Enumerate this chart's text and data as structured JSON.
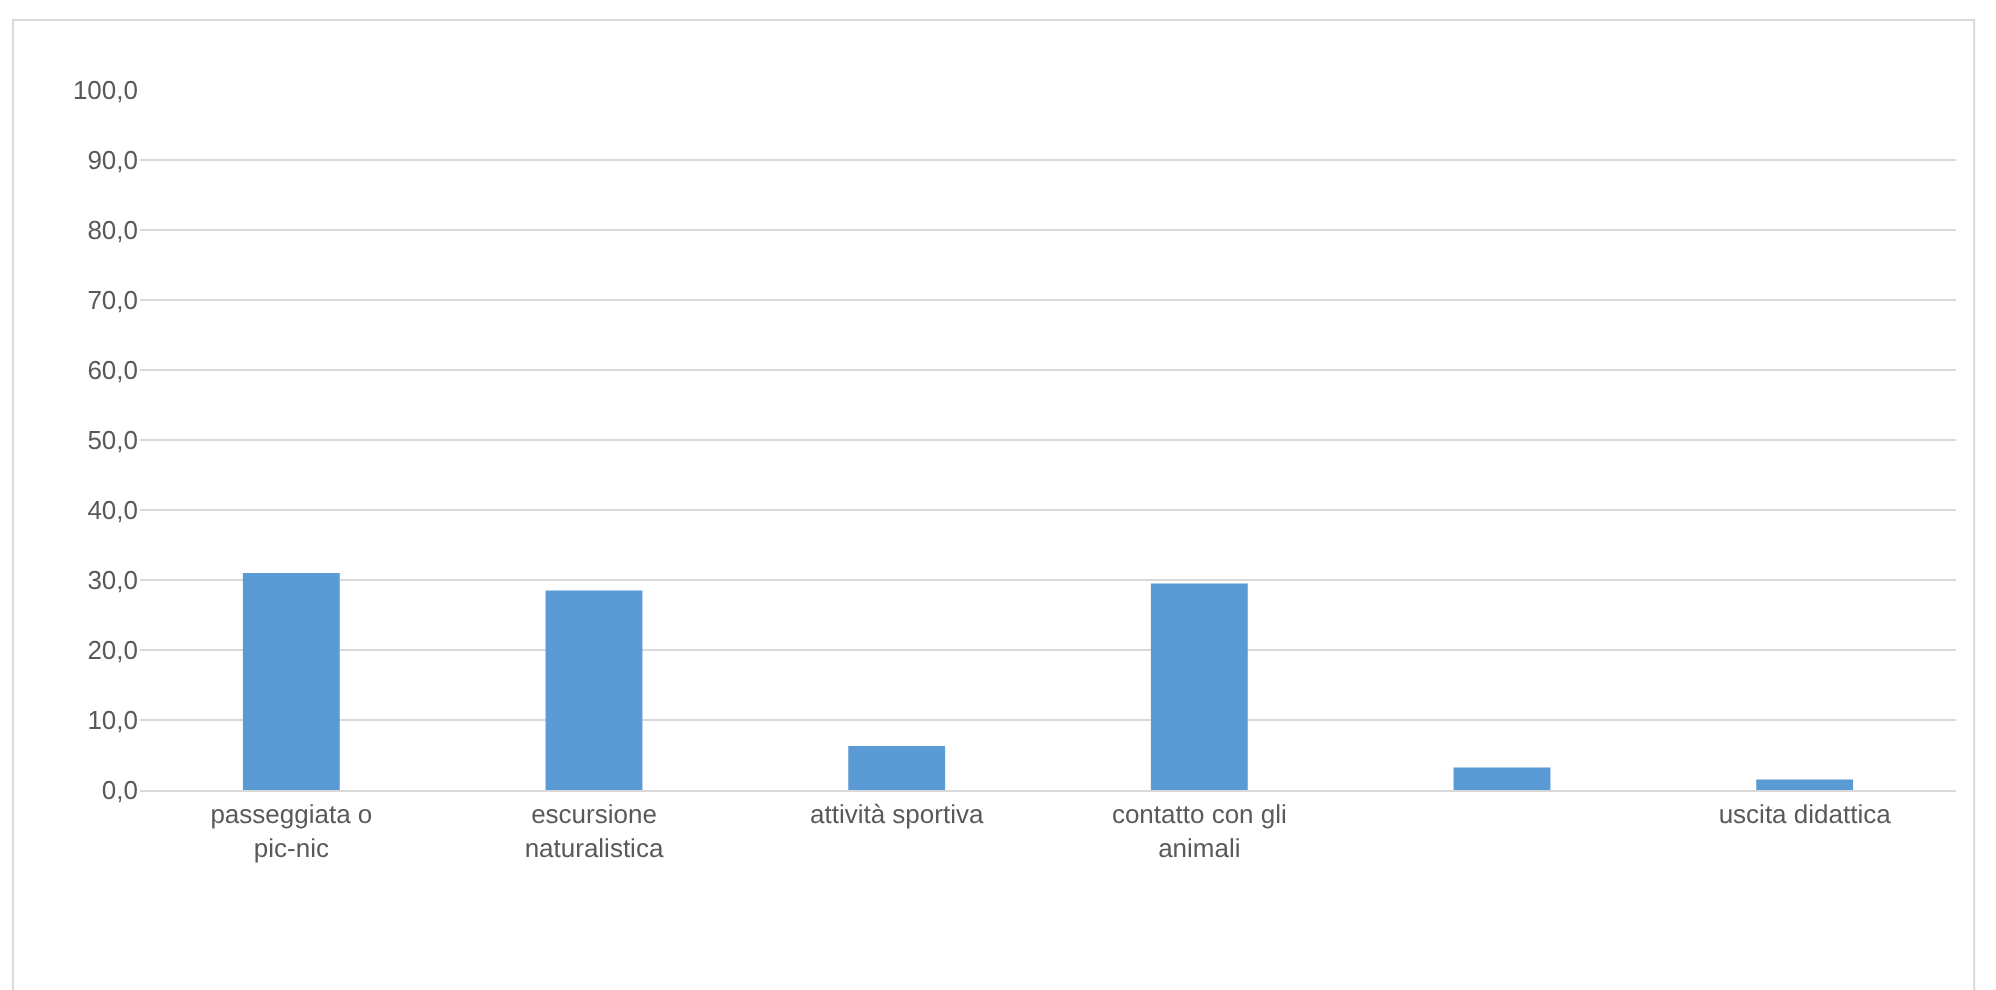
{
  "chart_data": {
    "type": "bar",
    "categories": [
      "passeggiata o pic-nic",
      "escursione naturalistica",
      "attività sportiva",
      "contatto con gli animali",
      null,
      "uscita didattica"
    ],
    "values": [
      31.0,
      28.5,
      6.3,
      29.5,
      3.2,
      1.5
    ],
    "color": "#5b9bd5",
    "ylim": [
      0,
      100
    ],
    "yticks": [
      {
        "value": 0,
        "label": "0,0"
      },
      {
        "value": 10,
        "label": "10,0"
      },
      {
        "value": 20,
        "label": "20,0"
      },
      {
        "value": 30,
        "label": "30,0"
      },
      {
        "value": 40,
        "label": "40,0"
      },
      {
        "value": 50,
        "label": "50,0"
      },
      {
        "value": 60,
        "label": "60,0"
      },
      {
        "value": 70,
        "label": "70,0"
      },
      {
        "value": 80,
        "label": "80,0"
      },
      {
        "value": 90,
        "label": "90,0"
      },
      {
        "value": 100,
        "label": "100,0"
      }
    ],
    "grid": "y"
  }
}
